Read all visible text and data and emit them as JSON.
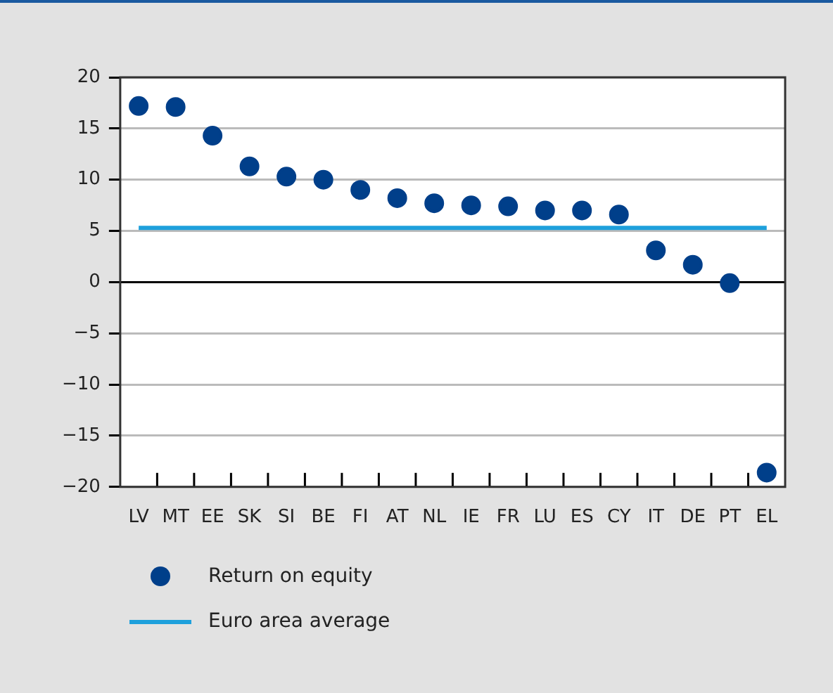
{
  "chart_data": {
    "type": "scatter",
    "categories": [
      "LV",
      "MT",
      "EE",
      "SK",
      "SI",
      "BE",
      "FI",
      "AT",
      "NL",
      "IE",
      "FR",
      "LU",
      "ES",
      "CY",
      "IT",
      "DE",
      "PT",
      "EL"
    ],
    "series": [
      {
        "name": "Return on equity",
        "color": "#003f8a",
        "values": [
          17.2,
          17.1,
          14.3,
          11.3,
          10.3,
          10.0,
          9.0,
          8.2,
          7.7,
          7.5,
          7.4,
          7.0,
          7.0,
          6.6,
          3.1,
          1.7,
          -0.1,
          -18.6
        ]
      }
    ],
    "ref_lines": [
      {
        "axis": "y",
        "value": 5.3,
        "label": "Euro area average",
        "color": "#1ea0dc"
      }
    ],
    "ylim": [
      -20,
      20
    ],
    "yticks": [
      -20,
      -15,
      -10,
      -5,
      0,
      5,
      10,
      15,
      20
    ],
    "grid": "y",
    "legend": "bottom",
    "marker": "circle"
  }
}
